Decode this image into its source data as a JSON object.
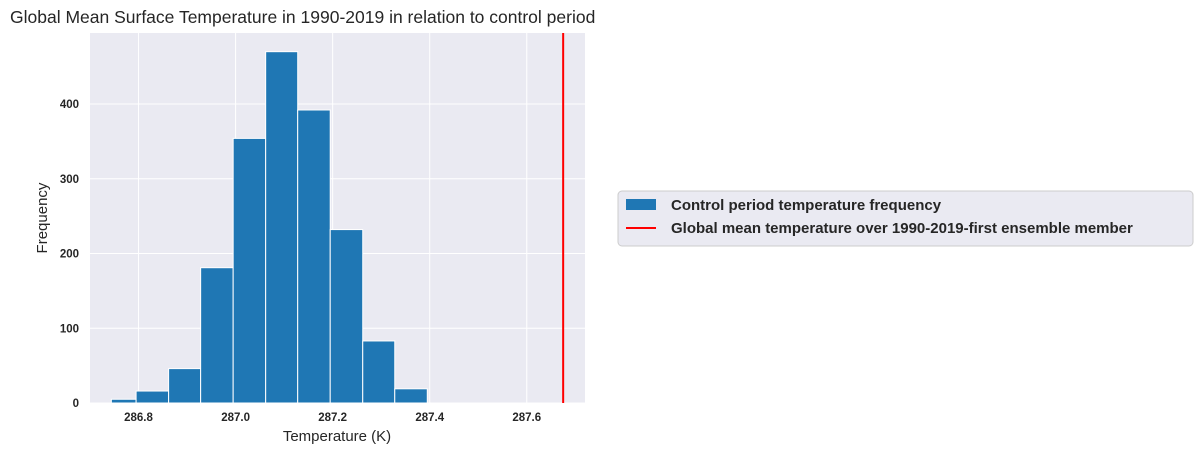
{
  "chart_data": {
    "type": "bar",
    "title": "Global Mean Surface Temperature in 1990-2019 in relation to control period",
    "xlabel": "Temperature (K)",
    "ylabel": "Frequency",
    "xlim": [
      286.7,
      287.72
    ],
    "ylim": [
      0,
      495
    ],
    "xticks": [
      286.8,
      287.0,
      287.2,
      287.4,
      287.6
    ],
    "xtick_labels": [
      "286.8",
      "287.0",
      "287.2",
      "287.4",
      "287.6"
    ],
    "yticks": [
      0,
      100,
      200,
      300,
      400
    ],
    "ytick_labels": [
      "0",
      "100",
      "200",
      "300",
      "400"
    ],
    "grid": true,
    "legend_position": "outside right",
    "series": [
      {
        "name": "Control period temperature frequency",
        "kind": "histogram",
        "color": "#1f77b4",
        "bins": [
          {
            "start": 286.744,
            "end": 286.795,
            "count": 5
          },
          {
            "start": 286.795,
            "end": 286.862,
            "count": 16
          },
          {
            "start": 286.862,
            "end": 286.928,
            "count": 46
          },
          {
            "start": 286.928,
            "end": 286.995,
            "count": 181
          },
          {
            "start": 286.995,
            "end": 287.062,
            "count": 354
          },
          {
            "start": 287.062,
            "end": 287.128,
            "count": 470
          },
          {
            "start": 287.128,
            "end": 287.195,
            "count": 392
          },
          {
            "start": 287.195,
            "end": 287.262,
            "count": 232
          },
          {
            "start": 287.262,
            "end": 287.328,
            "count": 83
          },
          {
            "start": 287.328,
            "end": 287.395,
            "count": 19
          }
        ]
      },
      {
        "name": "Global mean temperature over 1990-2019-first ensemble member",
        "kind": "vline",
        "color": "#ff0000",
        "x": 287.675
      }
    ]
  }
}
